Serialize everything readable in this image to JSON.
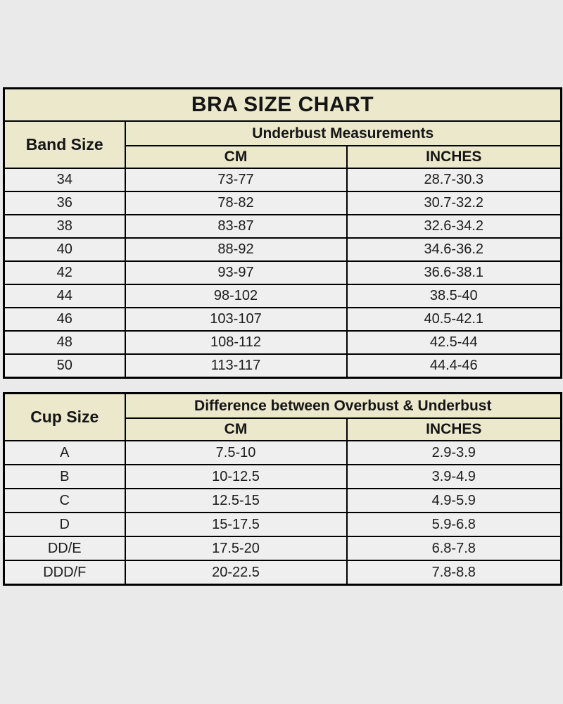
{
  "colors": {
    "page_bg": "#eaeaea",
    "header_bg": "#ece8cc",
    "row_bg": "#efefef",
    "border": "#000000",
    "text": "#151515"
  },
  "chart_data": [
    {
      "type": "table",
      "title": "BRA SIZE CHART",
      "row_header": "Band Size",
      "group_header": "Underbust Measurements",
      "col_cm": "CM",
      "col_inches": "INCHES",
      "rows": [
        {
          "size": "34",
          "cm": "73-77",
          "inches": "28.7-30.3"
        },
        {
          "size": "36",
          "cm": "78-82",
          "inches": "30.7-32.2"
        },
        {
          "size": "38",
          "cm": "83-87",
          "inches": "32.6-34.2"
        },
        {
          "size": "40",
          "cm": "88-92",
          "inches": "34.6-36.2"
        },
        {
          "size": "42",
          "cm": "93-97",
          "inches": "36.6-38.1"
        },
        {
          "size": "44",
          "cm": "98-102",
          "inches": "38.5-40"
        },
        {
          "size": "46",
          "cm": "103-107",
          "inches": "40.5-42.1"
        },
        {
          "size": "48",
          "cm": "108-112",
          "inches": "42.5-44"
        },
        {
          "size": "50",
          "cm": "113-117",
          "inches": "44.4-46"
        }
      ]
    },
    {
      "type": "table",
      "title": "",
      "row_header": "Cup Size",
      "group_header": "Difference between Overbust & Underbust",
      "col_cm": "CM",
      "col_inches": "INCHES",
      "rows": [
        {
          "size": "A",
          "cm": "7.5-10",
          "inches": "2.9-3.9"
        },
        {
          "size": "B",
          "cm": "10-12.5",
          "inches": "3.9-4.9"
        },
        {
          "size": "C",
          "cm": "12.5-15",
          "inches": "4.9-5.9"
        },
        {
          "size": "D",
          "cm": "15-17.5",
          "inches": "5.9-6.8"
        },
        {
          "size": "DD/E",
          "cm": "17.5-20",
          "inches": "6.8-7.8"
        },
        {
          "size": "DDD/F",
          "cm": "20-22.5",
          "inches": "7.8-8.8"
        }
      ]
    }
  ]
}
